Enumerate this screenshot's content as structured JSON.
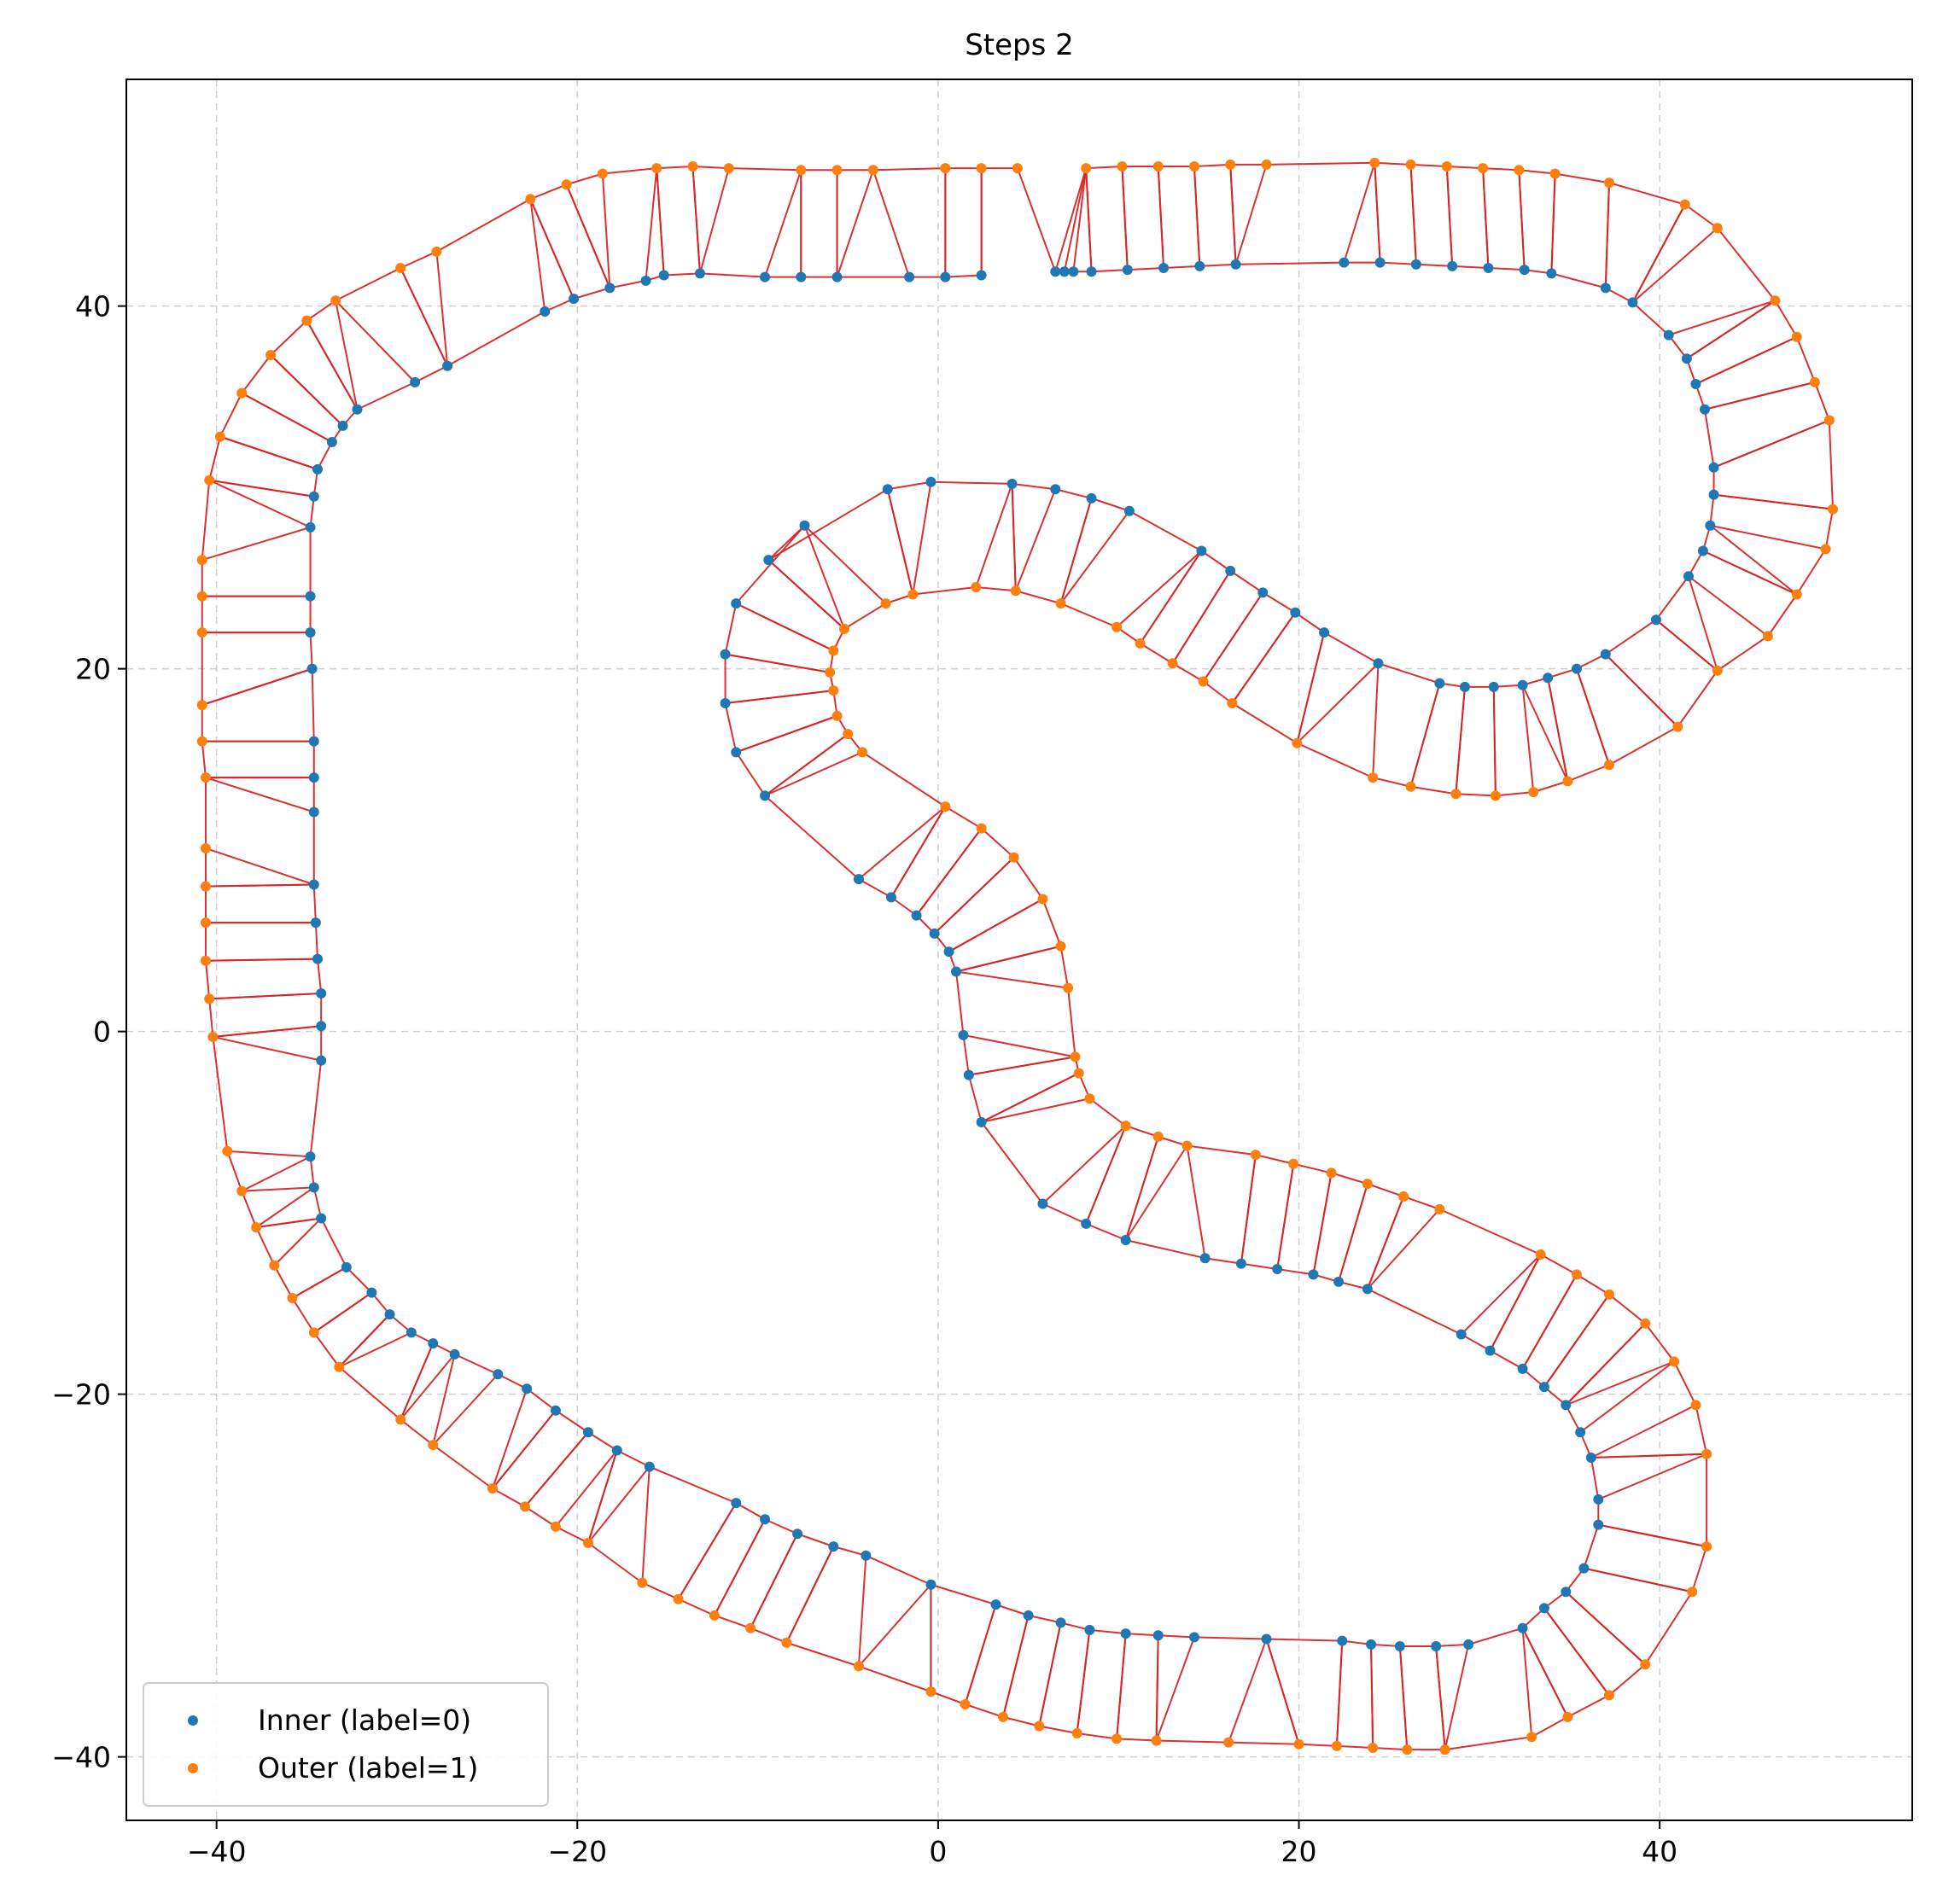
{
  "chart_data": {
    "type": "scatter",
    "title": "Steps 2",
    "xlabel": "",
    "ylabel": "",
    "xlim": [
      -45,
      54
    ],
    "ylim": [
      -43.5,
      52.5
    ],
    "grid": true,
    "x_ticks": [
      -40,
      -20,
      0,
      20,
      40
    ],
    "y_ticks": [
      -40,
      -20,
      0,
      20,
      40
    ],
    "x_tick_labels": [
      "−40",
      "−20",
      "0",
      "20",
      "40"
    ],
    "y_tick_labels": [
      "−40",
      "−20",
      "0",
      "20",
      "40"
    ],
    "legend_position": "lower-left",
    "legend": [
      {
        "label": "Inner (label=0)",
        "color": "#1f77b4"
      },
      {
        "label": "Outer (label=1)",
        "color": "#ff7f0e"
      }
    ],
    "edge_color": "#d62728",
    "inner": [
      [
        6.5,
        41.9
      ],
      [
        7.0,
        41.9
      ],
      [
        7.5,
        41.9
      ],
      [
        8.5,
        41.9
      ],
      [
        10.5,
        42.0
      ],
      [
        12.5,
        42.1
      ],
      [
        14.5,
        42.2
      ],
      [
        16.5,
        42.3
      ],
      [
        22.5,
        42.4
      ],
      [
        24.5,
        42.4
      ],
      [
        26.5,
        42.3
      ],
      [
        28.5,
        42.2
      ],
      [
        30.5,
        42.1
      ],
      [
        32.5,
        42.0
      ],
      [
        34.0,
        41.8
      ],
      [
        37.0,
        41.0
      ],
      [
        38.5,
        40.2
      ],
      [
        40.5,
        38.4
      ],
      [
        41.5,
        37.1
      ],
      [
        42.0,
        35.7
      ],
      [
        42.5,
        34.3
      ],
      [
        43.0,
        31.1
      ],
      [
        43.0,
        29.6
      ],
      [
        42.8,
        27.9
      ],
      [
        42.4,
        26.5
      ],
      [
        41.6,
        25.1
      ],
      [
        39.8,
        22.7
      ],
      [
        37.0,
        20.8
      ],
      [
        35.4,
        20.0
      ],
      [
        33.8,
        19.5
      ],
      [
        32.4,
        19.1
      ],
      [
        30.8,
        19.0
      ],
      [
        29.2,
        19.0
      ],
      [
        27.8,
        19.2
      ],
      [
        24.4,
        20.3
      ],
      [
        21.4,
        22.0
      ],
      [
        19.8,
        23.1
      ],
      [
        18.0,
        24.2
      ],
      [
        16.2,
        25.4
      ],
      [
        14.6,
        26.5
      ],
      [
        10.6,
        28.7
      ],
      [
        8.5,
        29.4
      ],
      [
        6.5,
        29.9
      ],
      [
        4.1,
        30.2
      ],
      [
        -0.4,
        30.3
      ],
      [
        -2.8,
        29.9
      ],
      [
        -9.4,
        26.0
      ],
      [
        -7.4,
        27.9
      ],
      [
        -11.2,
        23.6
      ],
      [
        -11.8,
        20.8
      ],
      [
        -11.8,
        18.1
      ],
      [
        -11.2,
        15.4
      ],
      [
        -9.6,
        13.0
      ],
      [
        -4.4,
        8.4
      ],
      [
        -2.6,
        7.4
      ],
      [
        -1.2,
        6.4
      ],
      [
        -0.2,
        5.4
      ],
      [
        0.6,
        4.4
      ],
      [
        1.0,
        3.3
      ],
      [
        1.4,
        -0.2
      ],
      [
        1.7,
        -2.4
      ],
      [
        2.4,
        -5.0
      ],
      [
        5.8,
        -9.5
      ],
      [
        8.2,
        -10.6
      ],
      [
        10.4,
        -11.5
      ],
      [
        14.8,
        -12.5
      ],
      [
        16.8,
        -12.8
      ],
      [
        18.8,
        -13.1
      ],
      [
        20.8,
        -13.4
      ],
      [
        22.2,
        -13.8
      ],
      [
        23.8,
        -14.2
      ],
      [
        29.0,
        -16.7
      ],
      [
        30.6,
        -17.6
      ],
      [
        32.4,
        -18.6
      ],
      [
        33.6,
        -19.6
      ],
      [
        34.8,
        -20.6
      ],
      [
        35.6,
        -22.1
      ],
      [
        36.2,
        -23.5
      ],
      [
        36.6,
        -25.8
      ],
      [
        36.6,
        -27.2
      ],
      [
        35.8,
        -29.6
      ],
      [
        34.8,
        -30.9
      ],
      [
        33.6,
        -31.8
      ],
      [
        32.4,
        -32.9
      ],
      [
        29.4,
        -33.8
      ],
      [
        27.6,
        -33.9
      ],
      [
        25.6,
        -33.9
      ],
      [
        24.0,
        -33.8
      ],
      [
        22.4,
        -33.6
      ],
      [
        18.2,
        -33.5
      ],
      [
        14.2,
        -33.4
      ],
      [
        12.2,
        -33.3
      ],
      [
        10.4,
        -33.2
      ],
      [
        8.4,
        -33.0
      ],
      [
        6.8,
        -32.6
      ],
      [
        5.0,
        -32.2
      ],
      [
        3.2,
        -31.6
      ],
      [
        -0.4,
        -30.5
      ],
      [
        -4.0,
        -28.9
      ],
      [
        -5.8,
        -28.4
      ],
      [
        -7.8,
        -27.7
      ],
      [
        -9.6,
        -26.9
      ],
      [
        -11.2,
        -26.0
      ],
      [
        -16.0,
        -24.0
      ],
      [
        -17.8,
        -23.1
      ],
      [
        -19.4,
        -22.1
      ],
      [
        -21.2,
        -20.9
      ],
      [
        -22.8,
        -19.7
      ],
      [
        -24.4,
        -18.9
      ],
      [
        -26.8,
        -17.8
      ],
      [
        -28.0,
        -17.2
      ],
      [
        -29.2,
        -16.6
      ],
      [
        -30.4,
        -15.6
      ],
      [
        -31.4,
        -14.4
      ],
      [
        -32.8,
        -13.0
      ],
      [
        -34.2,
        -10.3
      ],
      [
        -34.6,
        -8.6
      ],
      [
        -34.8,
        -6.9
      ],
      [
        -34.2,
        -1.6
      ],
      [
        -34.2,
        0.3
      ],
      [
        -34.2,
        2.1
      ],
      [
        -34.4,
        4.0
      ],
      [
        -34.5,
        6.0
      ],
      [
        -34.6,
        8.1
      ],
      [
        -34.6,
        12.1
      ],
      [
        -34.6,
        14.0
      ],
      [
        -34.6,
        16.0
      ],
      [
        -34.7,
        20.0
      ],
      [
        -34.8,
        22.0
      ],
      [
        -34.8,
        24.0
      ],
      [
        -34.8,
        27.8
      ],
      [
        -34.6,
        29.5
      ],
      [
        -34.4,
        31.0
      ],
      [
        -33.6,
        32.5
      ],
      [
        -33.0,
        33.4
      ],
      [
        -32.2,
        34.3
      ],
      [
        -29.0,
        35.8
      ],
      [
        -27.2,
        36.7
      ],
      [
        -21.8,
        39.7
      ],
      [
        -20.2,
        40.4
      ],
      [
        -18.2,
        41.0
      ],
      [
        -16.2,
        41.4
      ],
      [
        -15.2,
        41.7
      ],
      [
        -13.2,
        41.8
      ],
      [
        -9.6,
        41.6
      ],
      [
        -7.6,
        41.6
      ],
      [
        -5.6,
        41.6
      ],
      [
        -1.6,
        41.6
      ],
      [
        0.4,
        41.6
      ],
      [
        2.4,
        41.7
      ]
    ],
    "outer": [
      [
        8.2,
        47.6
      ],
      [
        10.2,
        47.7
      ],
      [
        12.2,
        47.7
      ],
      [
        14.2,
        47.7
      ],
      [
        16.2,
        47.8
      ],
      [
        18.2,
        47.8
      ],
      [
        24.2,
        47.9
      ],
      [
        26.2,
        47.8
      ],
      [
        28.2,
        47.7
      ],
      [
        30.2,
        47.6
      ],
      [
        32.2,
        47.5
      ],
      [
        34.2,
        47.3
      ],
      [
        37.2,
        46.8
      ],
      [
        41.4,
        45.6
      ],
      [
        43.2,
        44.3
      ],
      [
        46.4,
        40.3
      ],
      [
        47.6,
        38.3
      ],
      [
        48.6,
        35.8
      ],
      [
        49.4,
        33.7
      ],
      [
        49.6,
        28.8
      ],
      [
        49.2,
        26.6
      ],
      [
        47.6,
        24.1
      ],
      [
        46.0,
        21.8
      ],
      [
        43.2,
        19.9
      ],
      [
        41.0,
        16.8
      ],
      [
        37.2,
        14.7
      ],
      [
        34.9,
        13.8
      ],
      [
        33.0,
        13.2
      ],
      [
        30.9,
        13.0
      ],
      [
        28.7,
        13.1
      ],
      [
        26.2,
        13.5
      ],
      [
        24.1,
        14.0
      ],
      [
        19.9,
        15.9
      ],
      [
        16.3,
        18.1
      ],
      [
        14.7,
        19.3
      ],
      [
        13.0,
        20.3
      ],
      [
        11.2,
        21.4
      ],
      [
        9.9,
        22.3
      ],
      [
        6.8,
        23.6
      ],
      [
        4.3,
        24.3
      ],
      [
        2.1,
        24.5
      ],
      [
        -1.4,
        24.1
      ],
      [
        -2.9,
        23.6
      ],
      [
        -5.2,
        22.2
      ],
      [
        -5.8,
        21.0
      ],
      [
        -6.0,
        19.8
      ],
      [
        -5.8,
        18.8
      ],
      [
        -5.6,
        17.4
      ],
      [
        -5.0,
        16.4
      ],
      [
        -4.2,
        15.4
      ],
      [
        0.4,
        12.4
      ],
      [
        2.4,
        11.2
      ],
      [
        4.2,
        9.6
      ],
      [
        5.8,
        7.3
      ],
      [
        6.8,
        4.7
      ],
      [
        7.2,
        2.4
      ],
      [
        7.6,
        -1.4
      ],
      [
        7.8,
        -2.3
      ],
      [
        8.4,
        -3.7
      ],
      [
        10.4,
        -5.2
      ],
      [
        12.2,
        -5.8
      ],
      [
        13.8,
        -6.3
      ],
      [
        17.6,
        -6.8
      ],
      [
        19.7,
        -7.3
      ],
      [
        21.8,
        -7.8
      ],
      [
        23.8,
        -8.4
      ],
      [
        25.8,
        -9.1
      ],
      [
        27.8,
        -9.8
      ],
      [
        33.4,
        -12.3
      ],
      [
        35.4,
        -13.4
      ],
      [
        37.2,
        -14.5
      ],
      [
        39.2,
        -16.1
      ],
      [
        40.8,
        -18.2
      ],
      [
        42.0,
        -20.6
      ],
      [
        42.6,
        -23.3
      ],
      [
        42.6,
        -28.4
      ],
      [
        41.8,
        -30.9
      ],
      [
        39.2,
        -34.9
      ],
      [
        37.2,
        -36.6
      ],
      [
        34.9,
        -37.8
      ],
      [
        32.9,
        -38.9
      ],
      [
        28.1,
        -39.6
      ],
      [
        26.0,
        -39.6
      ],
      [
        24.1,
        -39.5
      ],
      [
        22.1,
        -39.4
      ],
      [
        20.0,
        -39.3
      ],
      [
        16.1,
        -39.2
      ],
      [
        12.1,
        -39.1
      ],
      [
        9.9,
        -39.0
      ],
      [
        7.7,
        -38.7
      ],
      [
        5.6,
        -38.3
      ],
      [
        3.6,
        -37.8
      ],
      [
        1.5,
        -37.1
      ],
      [
        -0.4,
        -36.4
      ],
      [
        -4.4,
        -35.0
      ],
      [
        -8.4,
        -33.7
      ],
      [
        -10.4,
        -32.9
      ],
      [
        -12.4,
        -32.2
      ],
      [
        -14.4,
        -31.3
      ],
      [
        -16.4,
        -30.4
      ],
      [
        -19.4,
        -28.2
      ],
      [
        -21.2,
        -27.3
      ],
      [
        -22.9,
        -26.2
      ],
      [
        -24.7,
        -25.2
      ],
      [
        -28.0,
        -22.8
      ],
      [
        -29.8,
        -21.4
      ],
      [
        -33.2,
        -18.5
      ],
      [
        -34.6,
        -16.6
      ],
      [
        -35.8,
        -14.7
      ],
      [
        -36.8,
        -12.9
      ],
      [
        -37.8,
        -10.8
      ],
      [
        -38.6,
        -8.8
      ],
      [
        -39.4,
        -6.6
      ],
      [
        -40.2,
        -0.3
      ],
      [
        -40.4,
        1.8
      ],
      [
        -40.6,
        3.9
      ],
      [
        -40.6,
        6.0
      ],
      [
        -40.6,
        8.0
      ],
      [
        -40.6,
        10.1
      ],
      [
        -40.6,
        14.0
      ],
      [
        -40.8,
        16.0
      ],
      [
        -40.8,
        18.0
      ],
      [
        -40.8,
        22.0
      ],
      [
        -40.8,
        24.0
      ],
      [
        -40.8,
        26.0
      ],
      [
        -40.4,
        30.4
      ],
      [
        -39.8,
        32.8
      ],
      [
        -38.6,
        35.2
      ],
      [
        -37.0,
        37.3
      ],
      [
        -35.0,
        39.2
      ],
      [
        -33.4,
        40.3
      ],
      [
        -29.8,
        42.1
      ],
      [
        -27.8,
        43.0
      ],
      [
        -22.6,
        45.9
      ],
      [
        -20.6,
        46.7
      ],
      [
        -18.6,
        47.3
      ],
      [
        -15.6,
        47.6
      ],
      [
        -13.6,
        47.7
      ],
      [
        -11.6,
        47.6
      ],
      [
        -7.6,
        47.5
      ],
      [
        -5.6,
        47.5
      ],
      [
        -3.6,
        47.5
      ],
      [
        0.4,
        47.6
      ],
      [
        2.4,
        47.6
      ],
      [
        4.4,
        47.6
      ]
    ]
  }
}
